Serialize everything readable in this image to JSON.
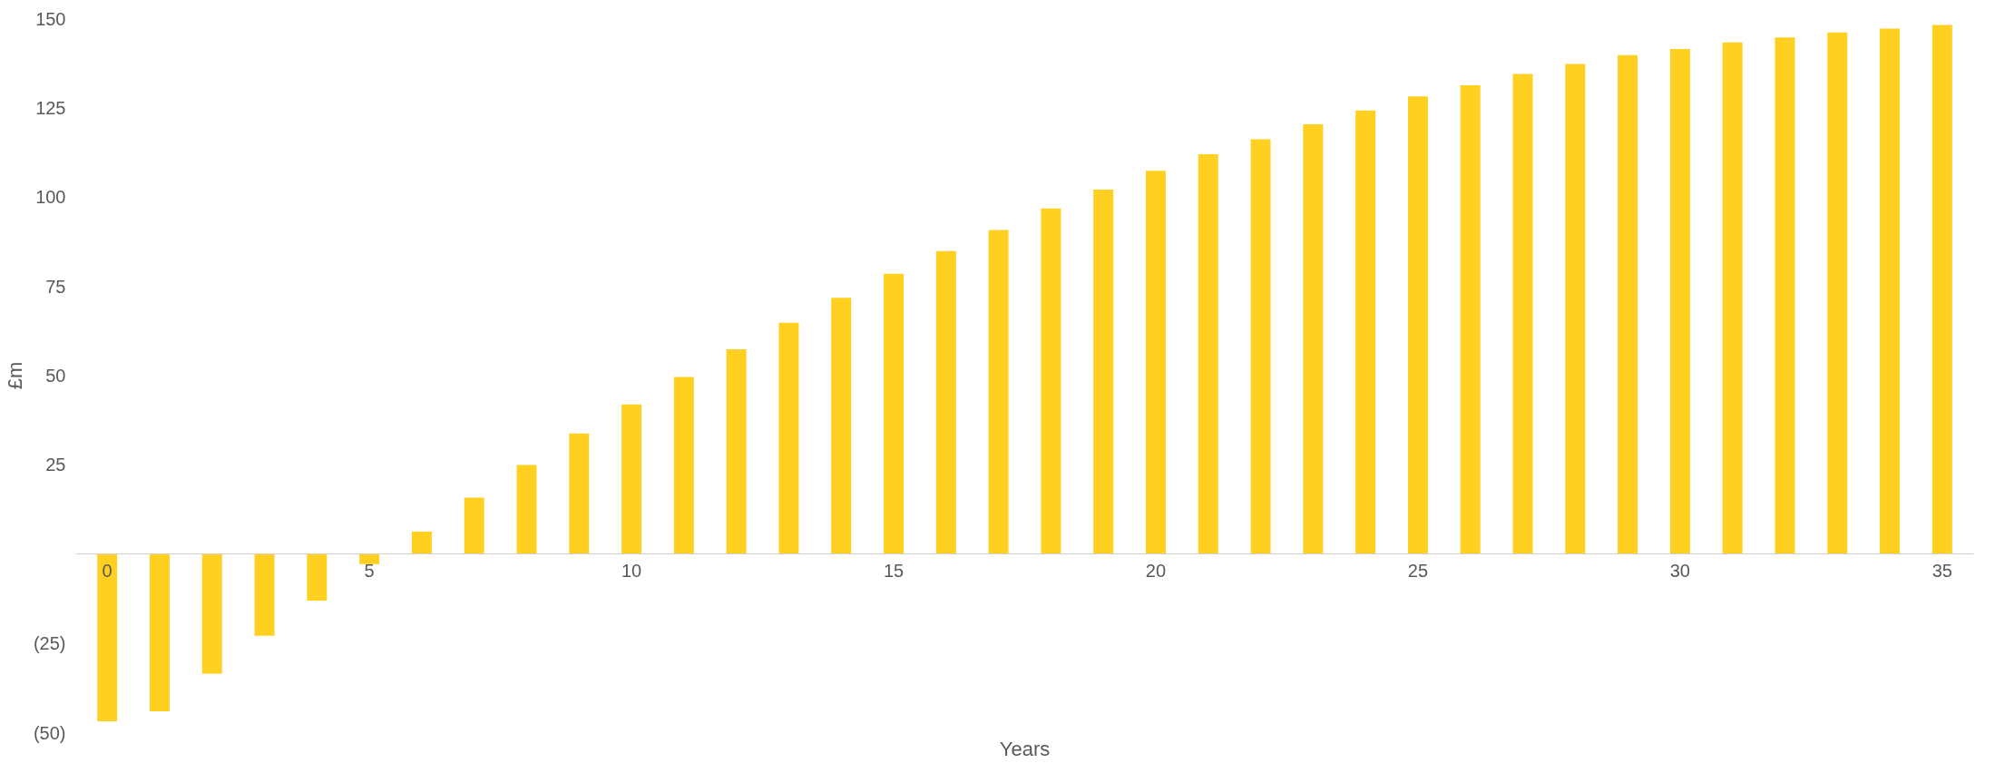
{
  "chart_data": {
    "type": "bar",
    "xlabel": "Years",
    "ylabel": "£m",
    "x": [
      0,
      1,
      2,
      3,
      4,
      5,
      6,
      7,
      8,
      9,
      10,
      11,
      12,
      13,
      14,
      15,
      16,
      17,
      18,
      19,
      20,
      21,
      22,
      23,
      24,
      25,
      26,
      27,
      28,
      29,
      30,
      31,
      32,
      33,
      34,
      35
    ],
    "values": [
      -46.8,
      -44,
      -33.5,
      -22.9,
      -13,
      -2.8,
      6.3,
      15.8,
      25,
      33.8,
      41.9,
      49.6,
      57.4,
      64.8,
      71.8,
      78.5,
      84.9,
      90.8,
      96.8,
      102.1,
      107.4,
      112,
      116.2,
      120.4,
      124.3,
      128.2,
      131.3,
      134.5,
      137.3,
      139.8,
      141.5,
      143.3,
      144.7,
      146.1,
      147.2,
      148.2
    ],
    "color": "#ffd020",
    "xlim": [
      -0.6,
      35.6
    ],
    "xticks": [
      0,
      5,
      10,
      15,
      20,
      25,
      30,
      35
    ],
    "ylim": [
      -50,
      150
    ],
    "yticks": [
      {
        "value": -50,
        "label": "(50)"
      },
      {
        "value": -25,
        "label": "(25)"
      },
      25,
      50,
      75,
      100,
      125,
      150
    ],
    "grid": false
  }
}
